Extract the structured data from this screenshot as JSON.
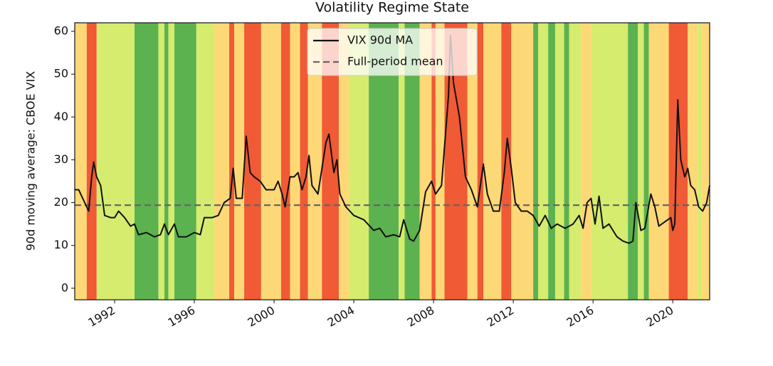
{
  "chart_data": {
    "type": "line",
    "title": "Volatility Regime State",
    "ylabel": "90d moving average: CBOE VIX",
    "xlim": [
      1990.0,
      2021.85
    ],
    "ylim": [
      -2.7,
      62
    ],
    "xticks": [
      1992,
      1996,
      2000,
      2004,
      2008,
      2012,
      2016,
      2020
    ],
    "yticks": [
      0,
      10,
      20,
      30,
      40,
      50,
      60
    ],
    "legend": "upper center",
    "series": [
      {
        "name": "VIX 90d MA",
        "color": "#111111",
        "x": [
          1990.0,
          1990.2,
          1990.5,
          1990.7,
          1990.85,
          1990.95,
          1991.1,
          1991.3,
          1991.5,
          1991.8,
          1992.0,
          1992.2,
          1992.5,
          1992.8,
          1993.0,
          1993.2,
          1993.6,
          1994.0,
          1994.3,
          1994.5,
          1994.7,
          1995.0,
          1995.2,
          1995.6,
          1996.0,
          1996.3,
          1996.5,
          1996.9,
          1997.2,
          1997.5,
          1997.8,
          1997.95,
          1998.1,
          1998.4,
          1998.6,
          1998.8,
          1999.0,
          1999.3,
          1999.6,
          2000.0,
          2000.2,
          2000.4,
          2000.55,
          2000.8,
          2001.0,
          2001.2,
          2001.4,
          2001.6,
          2001.75,
          2001.9,
          2002.2,
          2002.6,
          2002.75,
          2003.0,
          2003.15,
          2003.3,
          2003.6,
          2004.0,
          2004.5,
          2005.0,
          2005.3,
          2005.6,
          2006.0,
          2006.3,
          2006.5,
          2006.8,
          2007.0,
          2007.3,
          2007.6,
          2007.9,
          2008.1,
          2008.4,
          2008.75,
          2008.85,
          2009.0,
          2009.3,
          2009.6,
          2009.9,
          2010.2,
          2010.5,
          2010.7,
          2011.0,
          2011.3,
          2011.55,
          2011.7,
          2011.9,
          2012.1,
          2012.4,
          2012.7,
          2013.0,
          2013.3,
          2013.6,
          2013.9,
          2014.2,
          2014.6,
          2015.0,
          2015.3,
          2015.5,
          2015.7,
          2015.9,
          2016.1,
          2016.3,
          2016.5,
          2016.8,
          2017.2,
          2017.5,
          2017.8,
          2018.0,
          2018.15,
          2018.4,
          2018.6,
          2018.9,
          2019.1,
          2019.3,
          2019.6,
          2019.9,
          2020.0,
          2020.1,
          2020.25,
          2020.4,
          2020.6,
          2020.75,
          2020.9,
          2021.1,
          2021.3,
          2021.5,
          2021.7,
          2021.85
        ],
        "values": [
          23,
          23,
          20,
          18,
          26,
          29.5,
          26,
          24,
          17,
          16.5,
          16.5,
          18,
          16.5,
          14.5,
          15,
          12.5,
          13,
          12,
          12.5,
          15,
          12.5,
          15,
          12,
          12,
          13,
          12.5,
          16.5,
          16.5,
          17,
          20,
          21,
          28,
          21,
          21,
          35.5,
          27,
          26,
          25,
          23,
          23,
          25,
          22,
          19,
          26,
          26,
          27,
          23,
          26,
          31,
          24,
          22,
          34,
          36,
          27,
          30,
          22,
          19,
          17,
          16,
          13.5,
          14,
          12,
          12.5,
          12,
          16,
          11.5,
          11,
          13.5,
          22.5,
          25,
          22,
          24,
          45,
          59,
          48,
          40,
          26,
          23,
          19,
          29,
          22,
          18,
          18,
          27,
          35,
          28,
          20,
          18,
          18,
          17,
          14.5,
          17,
          14,
          15,
          14,
          15,
          17,
          14,
          20,
          21,
          15,
          21.5,
          14,
          15,
          12,
          11,
          10.5,
          11,
          20,
          13.5,
          14,
          22,
          19,
          14.5,
          15.5,
          16.5,
          13.5,
          15,
          44,
          30,
          26,
          28,
          24,
          23,
          19,
          18,
          20,
          24
        ]
      }
    ],
    "mean": {
      "name": "Full-period mean",
      "value": 19.4,
      "color": "#666666"
    },
    "bands": [
      {
        "x0": 1990.0,
        "x1": 1990.6,
        "color": "#fdd876"
      },
      {
        "x0": 1990.6,
        "x1": 1991.1,
        "color": "#f05a35"
      },
      {
        "x0": 1991.1,
        "x1": 1993.0,
        "color": "#d5ec6f"
      },
      {
        "x0": 1993.0,
        "x1": 1994.2,
        "color": "#5bb24f"
      },
      {
        "x0": 1994.2,
        "x1": 1994.5,
        "color": "#d5ec6f"
      },
      {
        "x0": 1994.5,
        "x1": 1994.7,
        "color": "#5bb24f"
      },
      {
        "x0": 1994.7,
        "x1": 1995.0,
        "color": "#d5ec6f"
      },
      {
        "x0": 1995.0,
        "x1": 1996.1,
        "color": "#5bb24f"
      },
      {
        "x0": 1996.1,
        "x1": 1997.0,
        "color": "#d5ec6f"
      },
      {
        "x0": 1997.0,
        "x1": 1997.75,
        "color": "#fdd876"
      },
      {
        "x0": 1997.75,
        "x1": 1998.0,
        "color": "#f05a35"
      },
      {
        "x0": 1998.0,
        "x1": 1998.5,
        "color": "#fdd876"
      },
      {
        "x0": 1998.5,
        "x1": 1999.35,
        "color": "#f05a35"
      },
      {
        "x0": 1999.35,
        "x1": 2000.35,
        "color": "#fdd876"
      },
      {
        "x0": 2000.35,
        "x1": 2000.8,
        "color": "#f05a35"
      },
      {
        "x0": 2000.8,
        "x1": 2001.3,
        "color": "#fdd876"
      },
      {
        "x0": 2001.3,
        "x1": 2001.7,
        "color": "#f05a35"
      },
      {
        "x0": 2001.7,
        "x1": 2002.4,
        "color": "#fdd876"
      },
      {
        "x0": 2002.4,
        "x1": 2003.25,
        "color": "#f05a35"
      },
      {
        "x0": 2003.25,
        "x1": 2003.75,
        "color": "#fdd876"
      },
      {
        "x0": 2003.75,
        "x1": 2004.75,
        "color": "#d5ec6f"
      },
      {
        "x0": 2004.75,
        "x1": 2006.25,
        "color": "#5bb24f"
      },
      {
        "x0": 2006.25,
        "x1": 2006.55,
        "color": "#d5ec6f"
      },
      {
        "x0": 2006.55,
        "x1": 2007.3,
        "color": "#5bb24f"
      },
      {
        "x0": 2007.3,
        "x1": 2007.9,
        "color": "#fdd876"
      },
      {
        "x0": 2007.9,
        "x1": 2008.1,
        "color": "#f05a35"
      },
      {
        "x0": 2008.1,
        "x1": 2008.55,
        "color": "#fdd876"
      },
      {
        "x0": 2008.55,
        "x1": 2009.7,
        "color": "#f05a35"
      },
      {
        "x0": 2009.7,
        "x1": 2010.2,
        "color": "#fdd876"
      },
      {
        "x0": 2010.2,
        "x1": 2010.5,
        "color": "#f05a35"
      },
      {
        "x0": 2010.5,
        "x1": 2011.4,
        "color": "#fdd876"
      },
      {
        "x0": 2011.4,
        "x1": 2011.9,
        "color": "#f05a35"
      },
      {
        "x0": 2011.9,
        "x1": 2013.0,
        "color": "#fdd876"
      },
      {
        "x0": 2013.0,
        "x1": 2013.25,
        "color": "#5bb24f"
      },
      {
        "x0": 2013.25,
        "x1": 2013.75,
        "color": "#d5ec6f"
      },
      {
        "x0": 2013.75,
        "x1": 2014.1,
        "color": "#5bb24f"
      },
      {
        "x0": 2014.1,
        "x1": 2014.55,
        "color": "#d5ec6f"
      },
      {
        "x0": 2014.55,
        "x1": 2014.8,
        "color": "#5bb24f"
      },
      {
        "x0": 2014.8,
        "x1": 2015.4,
        "color": "#d5ec6f"
      },
      {
        "x0": 2015.4,
        "x1": 2015.95,
        "color": "#fdd876"
      },
      {
        "x0": 2015.95,
        "x1": 2017.75,
        "color": "#d5ec6f"
      },
      {
        "x0": 2017.75,
        "x1": 2018.25,
        "color": "#5bb24f"
      },
      {
        "x0": 2018.25,
        "x1": 2018.55,
        "color": "#d5ec6f"
      },
      {
        "x0": 2018.55,
        "x1": 2018.8,
        "color": "#5bb24f"
      },
      {
        "x0": 2018.8,
        "x1": 2019.8,
        "color": "#fdd876"
      },
      {
        "x0": 2019.8,
        "x1": 2020.75,
        "color": "#f05a35"
      },
      {
        "x0": 2020.75,
        "x1": 2021.25,
        "color": "#fdd876"
      },
      {
        "x0": 2021.25,
        "x1": 2021.45,
        "color": "#d5ec6f"
      },
      {
        "x0": 2021.45,
        "x1": 2021.85,
        "color": "#fdd876"
      }
    ]
  }
}
